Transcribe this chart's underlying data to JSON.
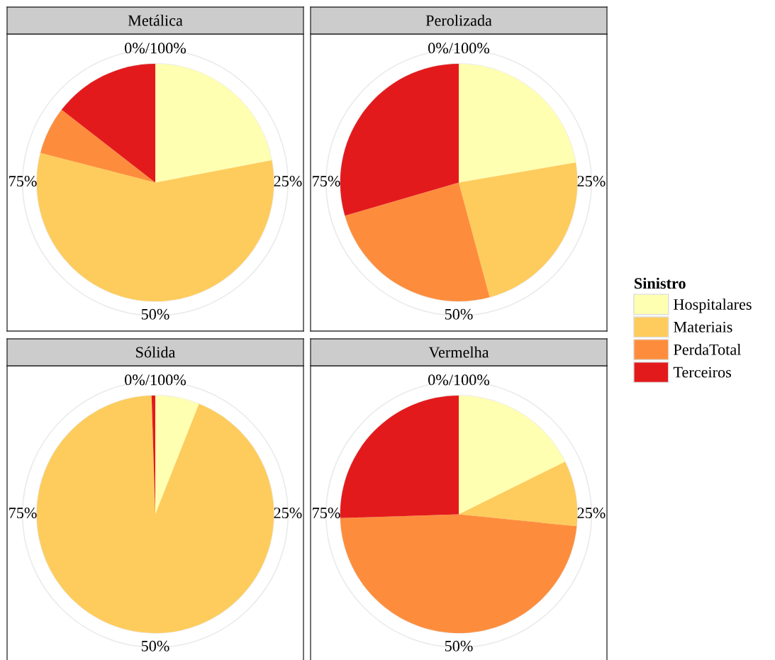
{
  "chart_data": [
    {
      "type": "pie",
      "title": "Metálica",
      "categories": [
        "Hospitalares",
        "Materiais",
        "PerdaTotal",
        "Terceiros"
      ],
      "values": [
        22,
        57,
        6.5,
        14.5
      ],
      "colors": [
        "#ffffb2",
        "#fecc5c",
        "#fd8d3c",
        "#e31a1c"
      ],
      "annotations": [
        "0%/100%",
        "25%",
        "50%",
        "75%"
      ],
      "grid": true,
      "legend": "right",
      "legend_title": "Sinistro"
    },
    {
      "type": "pie",
      "title": "Perolizada",
      "categories": [
        null,
        null,
        null,
        null
      ],
      "values": [
        22.3,
        23.5,
        24.7,
        29.5
      ],
      "colors": [
        "#ffffb2",
        "#fecc5c",
        "#fd8d3c",
        "#e31a1c"
      ],
      "annotations": [
        "0%/100%",
        "25%",
        "50%",
        "75%"
      ],
      "grid": true
    },
    {
      "type": "pie",
      "title": "Sólida",
      "categories": [
        null,
        null,
        null,
        null
      ],
      "values": [
        6,
        93.5,
        0,
        0.5
      ],
      "colors": [
        "#ffffb2",
        "#fecc5c",
        "#fd8d3c",
        "#e31a1c"
      ],
      "annotations": [
        "0%/100%",
        "25%",
        "50%",
        "75%"
      ],
      "grid": true
    },
    {
      "type": "pie",
      "title": "Vermelha",
      "categories": [
        null,
        null,
        null,
        null
      ],
      "values": [
        17.7,
        8.9,
        47.9,
        25.5
      ],
      "colors": [
        "#ffffb2",
        "#fecc5c",
        "#fd8d3c",
        "#e31a1c"
      ],
      "annotations": [
        "0%/100%",
        "25%",
        "50%",
        "75%"
      ],
      "grid": true
    }
  ]
}
